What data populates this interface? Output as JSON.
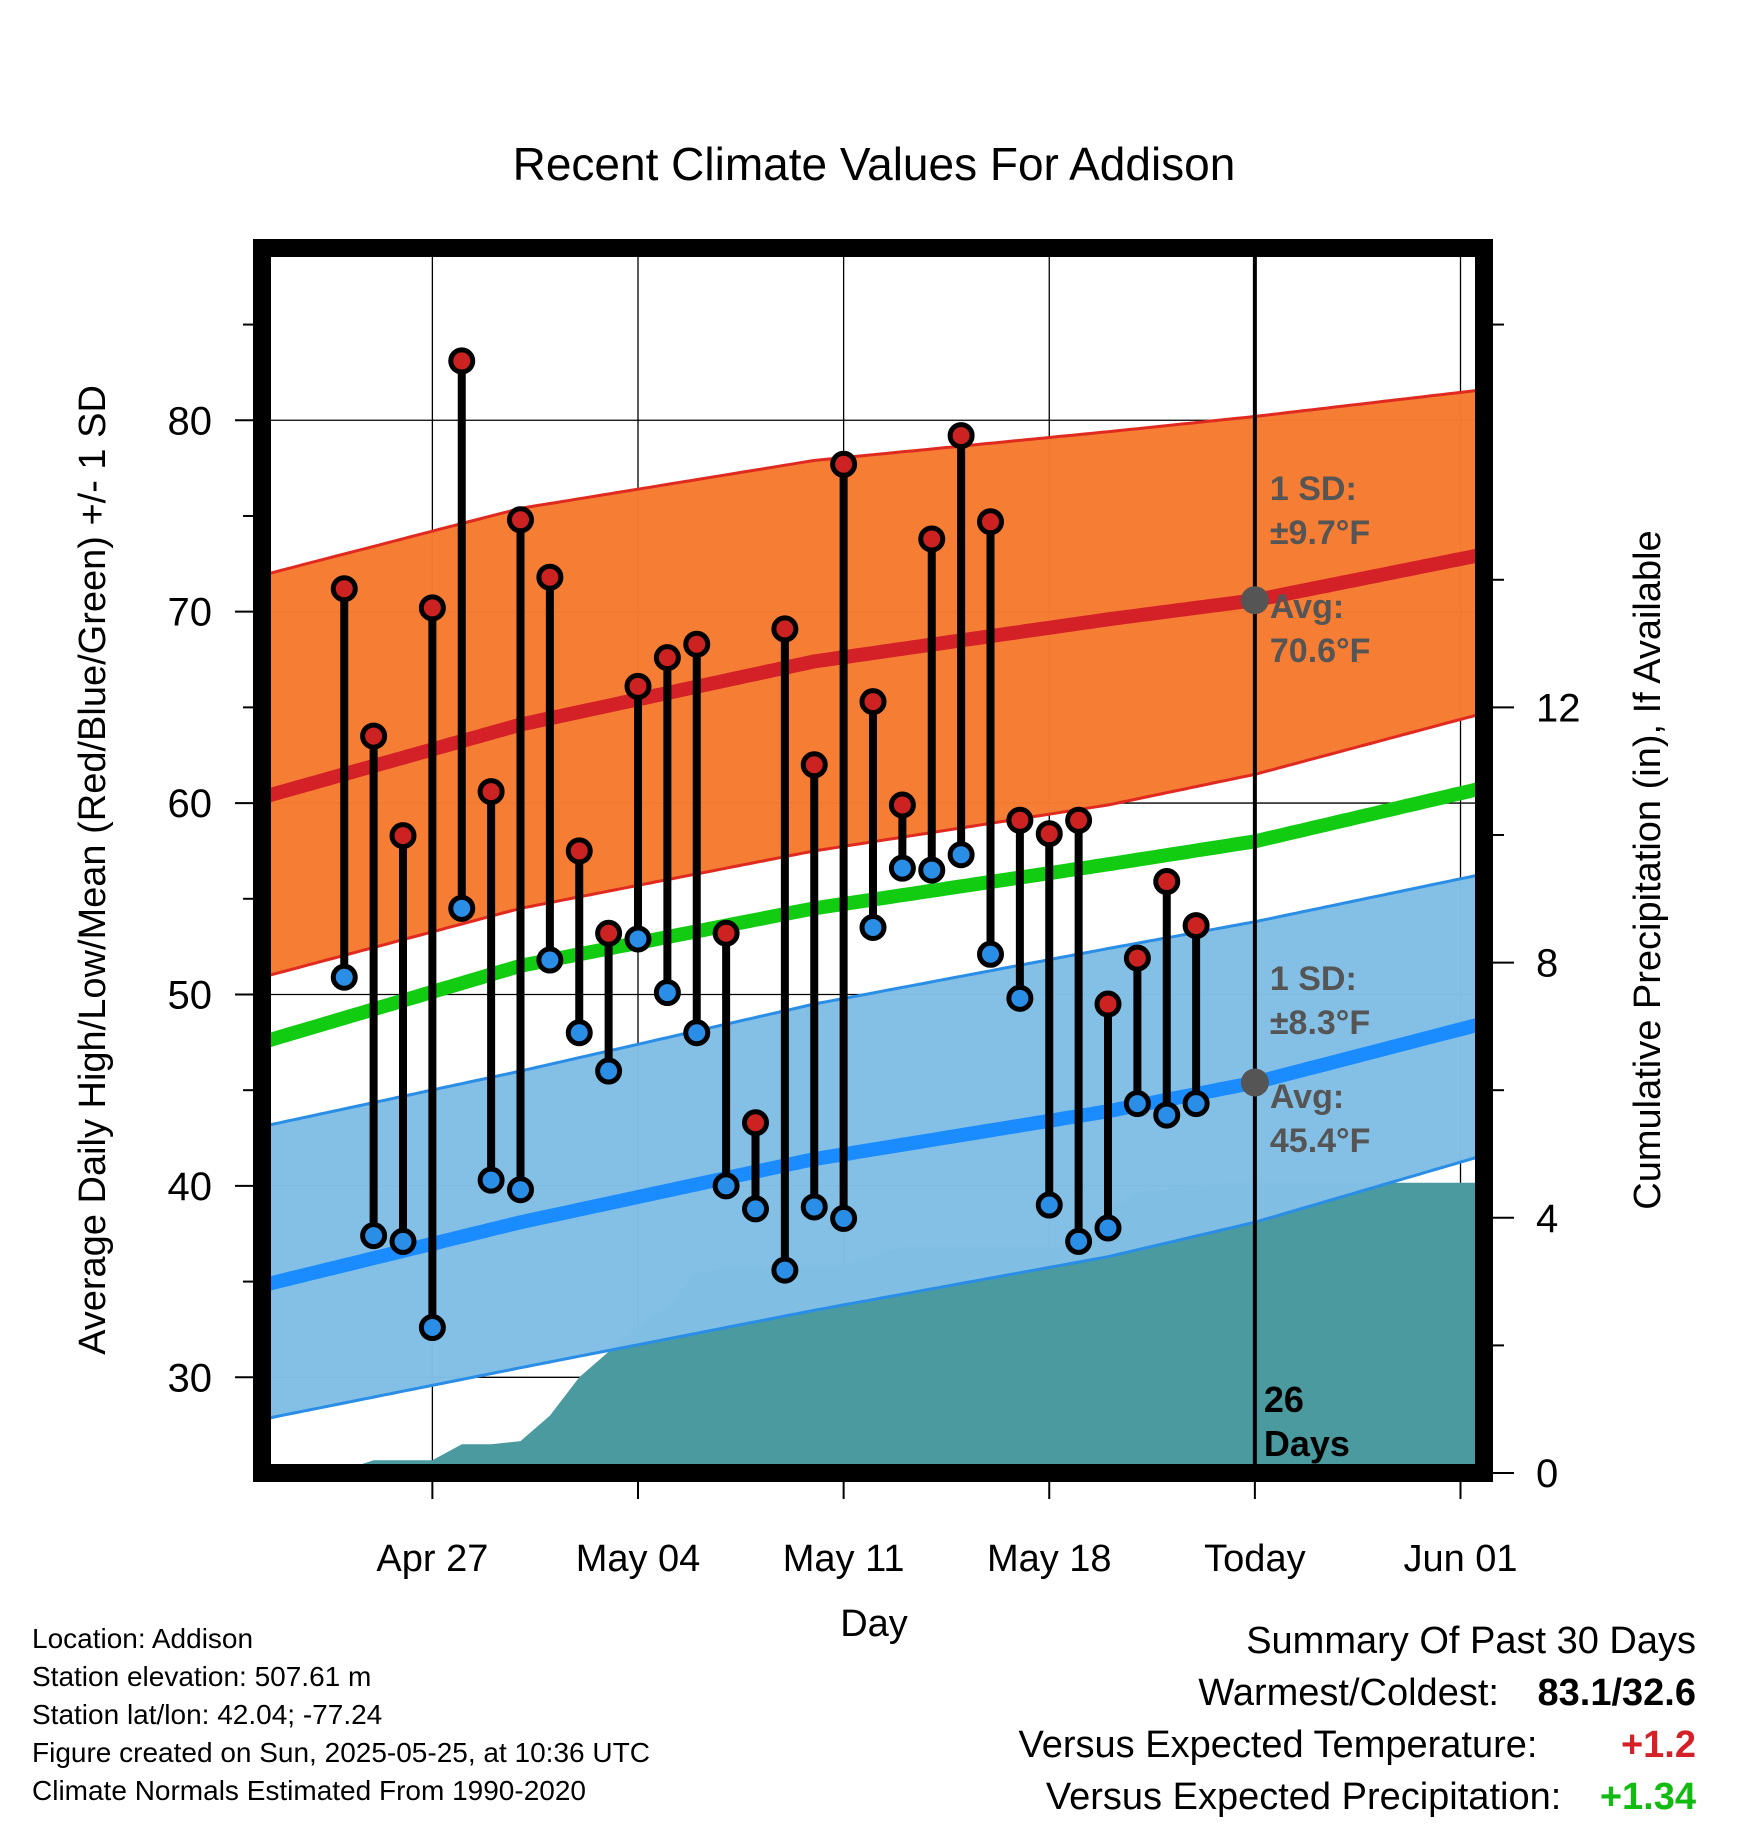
{
  "chart_data": {
    "type": "range-bar",
    "title": "Recent Climate Values For Addison",
    "xlabel": "Day",
    "ylabel_left": "Average Daily High/Low/Mean (Red/Blue/Green) +/- 1 SD",
    "ylabel_right": "Cumulative Precipitation (in), If Available",
    "x_range": [
      -3.8,
      37.8
    ],
    "ylim_left": [
      25,
      89
    ],
    "ylim_right": [
      0,
      19.2
    ],
    "x_ticks": [
      {
        "day": 2,
        "label": "Apr 27"
      },
      {
        "day": 9,
        "label": "May 04"
      },
      {
        "day": 16,
        "label": "May 11"
      },
      {
        "day": 23,
        "label": "May 18"
      },
      {
        "day": 30,
        "label": "Today"
      },
      {
        "day": 37,
        "label": "Jun 01"
      }
    ],
    "y_ticks_left": [
      30,
      40,
      50,
      60,
      70,
      80
    ],
    "y_ticks_right": [
      0,
      4,
      8,
      12
    ],
    "grid": true,
    "daily": [
      {
        "day": -1,
        "high": 71.2,
        "low": 50.9
      },
      {
        "day": 0,
        "high": 63.5,
        "low": 37.4
      },
      {
        "day": 1,
        "high": 58.3,
        "low": 37.1
      },
      {
        "day": 2,
        "high": 70.2,
        "low": 32.6
      },
      {
        "day": 3,
        "high": 83.1,
        "low": 54.5
      },
      {
        "day": 4,
        "high": 60.6,
        "low": 40.3
      },
      {
        "day": 5,
        "high": 74.8,
        "low": 39.8
      },
      {
        "day": 6,
        "high": 71.8,
        "low": 51.8
      },
      {
        "day": 7,
        "high": 57.5,
        "low": 48.0
      },
      {
        "day": 8,
        "high": 53.2,
        "low": 46.0
      },
      {
        "day": 9,
        "high": 66.1,
        "low": 52.9
      },
      {
        "day": 10,
        "high": 67.6,
        "low": 50.1
      },
      {
        "day": 11,
        "high": 68.3,
        "low": 48.0
      },
      {
        "day": 12,
        "high": 53.2,
        "low": 40.0
      },
      {
        "day": 13,
        "high": 43.3,
        "low": 38.8
      },
      {
        "day": 14,
        "high": 69.1,
        "low": 35.6
      },
      {
        "day": 15,
        "high": 62.0,
        "low": 38.9
      },
      {
        "day": 16,
        "high": 77.7,
        "low": 38.3
      },
      {
        "day": 17,
        "high": 65.3,
        "low": 53.5
      },
      {
        "day": 18,
        "high": 59.9,
        "low": 56.6
      },
      {
        "day": 19,
        "high": 73.8,
        "low": 56.5
      },
      {
        "day": 20,
        "high": 79.2,
        "low": 57.3
      },
      {
        "day": 21,
        "high": 74.7,
        "low": 52.1
      },
      {
        "day": 22,
        "high": 59.1,
        "low": 49.8
      },
      {
        "day": 23,
        "high": 58.4,
        "low": 39.0
      },
      {
        "day": 24,
        "high": 59.1,
        "low": 37.1
      },
      {
        "day": 25,
        "high": 49.5,
        "low": 37.8
      },
      {
        "day": 26,
        "high": 51.9,
        "low": 44.3
      },
      {
        "day": 27,
        "high": 55.9,
        "low": 43.7
      },
      {
        "day": 28,
        "high": 53.6,
        "low": 44.3
      }
    ],
    "normal_high": {
      "avg": [
        [
          -3.8,
          60.3
        ],
        [
          5,
          64.1
        ],
        [
          15,
          67.4
        ],
        [
          25,
          69.6
        ],
        [
          30,
          70.6
        ],
        [
          37.8,
          73.0
        ]
      ],
      "upper": [
        [
          -3.8,
          71.9
        ],
        [
          5,
          75.4
        ],
        [
          15,
          77.9
        ],
        [
          25,
          79.4
        ],
        [
          30,
          80.2
        ],
        [
          37.8,
          81.6
        ]
      ],
      "lower": [
        [
          -3.8,
          50.9
        ],
        [
          5,
          54.5
        ],
        [
          15,
          57.5
        ],
        [
          25,
          59.9
        ],
        [
          30,
          61.5
        ],
        [
          37.8,
          64.7
        ]
      ]
    },
    "normal_low": {
      "avg": [
        [
          -3.8,
          34.8
        ],
        [
          5,
          38.1
        ],
        [
          15,
          41.4
        ],
        [
          25,
          43.9
        ],
        [
          30,
          45.4
        ],
        [
          37.8,
          48.5
        ]
      ],
      "upper": [
        [
          -3.8,
          43.1
        ],
        [
          5,
          46.0
        ],
        [
          15,
          49.5
        ],
        [
          25,
          52.4
        ],
        [
          30,
          53.8
        ],
        [
          37.8,
          56.3
        ]
      ],
      "lower": [
        [
          -3.8,
          27.8
        ],
        [
          5,
          30.5
        ],
        [
          15,
          33.5
        ],
        [
          25,
          36.3
        ],
        [
          30,
          38.1
        ],
        [
          37.8,
          41.6
        ]
      ]
    },
    "normal_mean": [
      [
        -3.8,
        47.5
      ],
      [
        5,
        51.5
      ],
      [
        15,
        54.5
      ],
      [
        25,
        56.8
      ],
      [
        30,
        58.0
      ],
      [
        37.8,
        60.8
      ]
    ],
    "precip": [
      [
        -2,
        0
      ],
      [
        -1,
        0.05
      ],
      [
        0,
        0.2
      ],
      [
        1,
        0.2
      ],
      [
        2,
        0.2
      ],
      [
        3,
        0.45
      ],
      [
        4,
        0.45
      ],
      [
        5,
        0.5
      ],
      [
        6,
        0.9
      ],
      [
        7,
        1.5
      ],
      [
        8,
        1.9
      ],
      [
        9,
        2.3
      ],
      [
        10,
        2.6
      ],
      [
        11,
        3.15
      ],
      [
        12,
        3.2
      ],
      [
        13,
        3.2
      ],
      [
        14,
        3.25
      ],
      [
        15,
        3.25
      ],
      [
        16,
        3.25
      ],
      [
        17,
        3.4
      ],
      [
        18,
        3.55
      ],
      [
        19,
        3.55
      ],
      [
        20,
        3.55
      ],
      [
        21,
        3.55
      ],
      [
        22,
        3.55
      ],
      [
        23,
        3.55
      ],
      [
        24,
        3.55
      ],
      [
        25,
        4.1
      ],
      [
        26,
        4.4
      ],
      [
        27,
        4.45
      ],
      [
        28,
        4.5
      ],
      [
        29,
        4.55
      ],
      [
        30,
        4.55
      ],
      [
        37.8,
        4.55
      ]
    ],
    "today_day": 30,
    "today_marks": {
      "high_avg": 70.6,
      "low_avg": 45.4
    },
    "annotations": {
      "high_sd_line1": "1 SD:",
      "high_sd_line2": "±9.7°F",
      "high_avg_line1": "Avg:",
      "high_avg_line2": "70.6°F",
      "low_sd_line1": "1 SD:",
      "low_sd_line2": "±8.3°F",
      "low_avg_line1": "Avg:",
      "low_avg_line2": "45.4°F",
      "days_line1": "26",
      "days_line2": "Days"
    },
    "colors": {
      "high_band": "#f57a30",
      "high_edge": "#e02a20",
      "high_avg": "#d42027",
      "low_band": "#82bfe6",
      "low_edge": "#2a8de6",
      "low_avg": "#1a8cff",
      "mean": "#12cc12",
      "precip": "#4a9aa0",
      "high_dot": "#cc2222",
      "low_dot": "#2a8de6",
      "today_mark": "#555555",
      "annotation": "#555555"
    }
  },
  "footer": {
    "location": "Location: Addison",
    "elevation": "Station elevation: 507.61 m",
    "latlon": "Station lat/lon: 42.04; -77.24",
    "created": "Figure created on Sun, 2025-05-25, at 10:36 UTC",
    "normals": "Climate Normals Estimated From 1990-2020"
  },
  "summary": {
    "title": "Summary Of Past 30 Days",
    "warmest_label": "Warmest/Coldest:",
    "warmest_value": "83.1/32.6",
    "temp_label": "Versus Expected Temperature:",
    "temp_value": "+1.2",
    "temp_color": "#d42027",
    "precip_label": "Versus Expected Precipitation:",
    "precip_value": "+1.34",
    "precip_color": "#12bb12"
  }
}
